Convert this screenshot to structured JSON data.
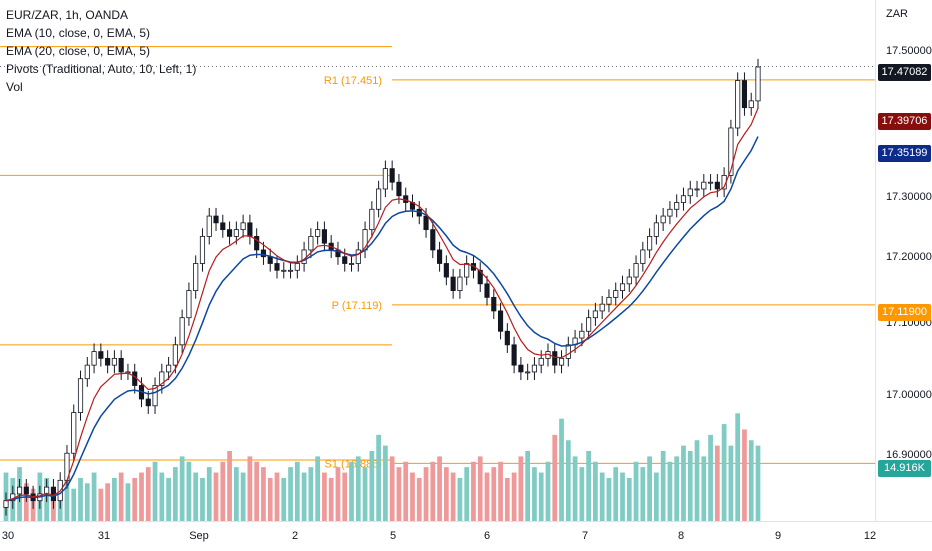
{
  "legend": {
    "symbol": "EUR/ZAR, 1h, OANDA",
    "ema10": "EMA (10, close, 0, EMA, 5)",
    "ema20": "EMA (20, close, 0, EMA, 5)",
    "pivots": "Pivots (Traditional, Auto, 10, Left, 1)",
    "vol": "Vol"
  },
  "price_axis": {
    "currency": "ZAR",
    "ticks": [
      "17.50000",
      "17.30000",
      "17.20000",
      "17.10000",
      "17.00000",
      "16.90000"
    ],
    "badges": [
      {
        "label": "17.47082",
        "color": "#131722"
      },
      {
        "label": "17.39706",
        "color": "#880e0e"
      },
      {
        "label": "17.35199",
        "color": "#0d2b8a"
      },
      {
        "label": "17.11900",
        "color": "#ff9800"
      },
      {
        "label": "14.916K",
        "color": "#26a69a"
      }
    ]
  },
  "time_axis": {
    "ticks": [
      "30",
      "31",
      "Sep",
      "2",
      "5",
      "6",
      "7",
      "8",
      "9",
      "12"
    ]
  },
  "pivot_labels": {
    "r1": "R1 (17.451)",
    "p": "P (17.119)",
    "s1": "S1 (16.885)"
  },
  "colors": {
    "up": "#131722",
    "down": "#131722",
    "ema10": "#b71c1c",
    "ema20": "#0d47a1",
    "pivot": "#ff9800",
    "vol_up": "#80cbc4",
    "vol_down": "#ef9a9a"
  },
  "chart_data": {
    "type": "candlestick",
    "ylabel": "ZAR",
    "ylim": [
      16.8,
      17.56
    ],
    "x_labels": [
      "30",
      "31",
      "Sep",
      "2",
      "5",
      "6",
      "7",
      "8",
      "9",
      "12"
    ],
    "pivot_levels": [
      {
        "name": "R1",
        "value": 17.451
      },
      {
        "name": "P",
        "value": 17.119
      },
      {
        "name": "S1",
        "value": 16.885
      }
    ],
    "last_values": {
      "close": 17.47082,
      "ema10": 17.39706,
      "ema20": 17.35199,
      "volume": "14.916K"
    },
    "close_path": [
      16.83,
      16.84,
      16.85,
      16.84,
      16.83,
      16.84,
      16.85,
      16.83,
      16.86,
      16.9,
      16.96,
      17.01,
      17.03,
      17.05,
      17.04,
      17.03,
      17.04,
      17.02,
      17.02,
      17.0,
      16.98,
      16.97,
      17.0,
      17.02,
      17.03,
      17.06,
      17.1,
      17.14,
      17.18,
      17.22,
      17.25,
      17.24,
      17.23,
      17.22,
      17.23,
      17.24,
      17.22,
      17.2,
      17.19,
      17.18,
      17.17,
      17.17,
      17.17,
      17.18,
      17.2,
      17.22,
      17.23,
      17.21,
      17.2,
      17.19,
      17.18,
      17.18,
      17.2,
      17.23,
      17.26,
      17.29,
      17.32,
      17.3,
      17.28,
      17.27,
      17.26,
      17.25,
      17.23,
      17.2,
      17.18,
      17.16,
      17.14,
      17.16,
      17.18,
      17.17,
      17.15,
      17.13,
      17.11,
      17.08,
      17.06,
      17.03,
      17.02,
      17.02,
      17.03,
      17.04,
      17.05,
      17.03,
      17.04,
      17.06,
      17.07,
      17.08,
      17.1,
      17.11,
      17.12,
      17.13,
      17.14,
      17.15,
      17.16,
      17.18,
      17.2,
      17.22,
      17.24,
      17.25,
      17.26,
      17.27,
      17.28,
      17.29,
      17.29,
      17.3,
      17.3,
      17.29,
      17.31,
      17.38,
      17.45,
      17.41,
      17.42,
      17.47
    ],
    "volume_path": [
      9,
      8,
      10,
      7,
      6,
      9,
      8,
      6,
      7,
      9,
      6,
      8,
      7,
      9,
      6,
      7,
      8,
      9,
      7,
      8,
      9,
      10,
      11,
      9,
      8,
      10,
      12,
      11,
      9,
      8,
      10,
      9,
      11,
      13,
      10,
      9,
      12,
      11,
      10,
      8,
      9,
      8,
      10,
      11,
      9,
      10,
      12,
      9,
      8,
      10,
      9,
      11,
      12,
      10,
      13,
      16,
      14,
      12,
      10,
      11,
      9,
      8,
      10,
      11,
      12,
      10,
      9,
      8,
      10,
      11,
      12,
      9,
      10,
      11,
      8,
      9,
      12,
      13,
      10,
      9,
      11,
      16,
      19,
      15,
      12,
      10,
      13,
      11,
      9,
      8,
      10,
      9,
      8,
      11,
      10,
      12,
      9,
      13,
      11,
      12,
      14,
      13,
      15,
      12,
      16,
      14,
      18,
      14,
      20,
      17,
      15,
      14
    ]
  }
}
